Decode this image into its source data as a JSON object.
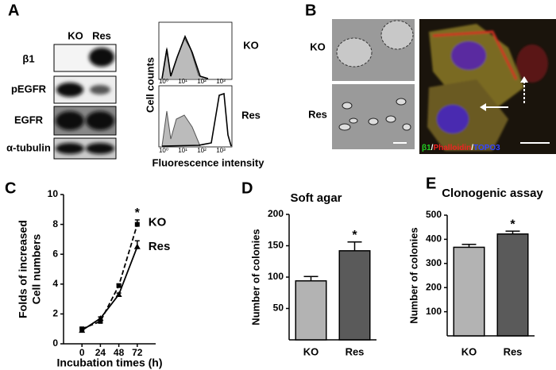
{
  "panel_labels": [
    "A",
    "B",
    "C",
    "D",
    "E"
  ],
  "blot": {
    "columns": [
      "KO",
      "Res"
    ],
    "rows": [
      "β1",
      "pEGFR",
      "EGFR",
      "α-tubulin"
    ]
  },
  "flow": {
    "y_label": "Cell counts",
    "x_label": "Fluorescence intensity",
    "panels": [
      "KO",
      "Res"
    ],
    "x_tick_labels": [
      "10⁰",
      "10¹",
      "10²",
      "10³"
    ]
  },
  "micrographs": {
    "rows": [
      "KO",
      "Res"
    ],
    "stains": [
      {
        "text": "β1",
        "color": "#22cc22"
      },
      {
        "text": "Phalloidin",
        "color": "#ee2222"
      },
      {
        "text": "TOPO3",
        "color": "#3344ff"
      }
    ],
    "separator": "/"
  },
  "chart_data": [
    {
      "type": "line",
      "x_label": "Incubation times (h)",
      "y_label": [
        "Folds of increased",
        "Cell numbers"
      ],
      "x": [
        0,
        24,
        48,
        72
      ],
      "xlim": [
        -24,
        96
      ],
      "xticks": [
        0,
        24,
        48,
        72
      ],
      "ylim": [
        0,
        10
      ],
      "yticks": [
        0,
        2,
        4,
        6,
        8,
        10
      ],
      "series": [
        {
          "name": "KO",
          "color": "#000000",
          "dashed": true,
          "marker": "square",
          "values": [
            1.0,
            1.5,
            3.9,
            8.0
          ],
          "errors": [
            0.1,
            0.1,
            0.1,
            0.3
          ]
        },
        {
          "name": "Res",
          "color": "#000000",
          "dashed": false,
          "marker": "triangle",
          "values": [
            0.9,
            1.7,
            3.3,
            6.5
          ],
          "errors": [
            0.1,
            0.1,
            0.1,
            0.4
          ]
        }
      ],
      "annotation": "*"
    },
    {
      "type": "bar",
      "title": "Soft agar",
      "y_label": "Number of colonies",
      "categories": [
        "KO",
        "Res"
      ],
      "values": [
        94,
        142
      ],
      "errors": [
        7,
        14
      ],
      "colors": [
        "#b3b3b3",
        "#5a5a5a"
      ],
      "ylim": [
        0,
        200
      ],
      "yticks": [
        50,
        100,
        150,
        200
      ],
      "annotation": "*"
    },
    {
      "type": "bar",
      "title": "Clonogenic assay",
      "y_label": "Number of colonies",
      "categories": [
        "KO",
        "Res"
      ],
      "values": [
        367,
        422
      ],
      "errors": [
        12,
        12
      ],
      "colors": [
        "#b3b3b3",
        "#5a5a5a"
      ],
      "ylim": [
        0,
        500
      ],
      "yticks": [
        100,
        200,
        300,
        400,
        500
      ],
      "annotation": "*"
    }
  ]
}
